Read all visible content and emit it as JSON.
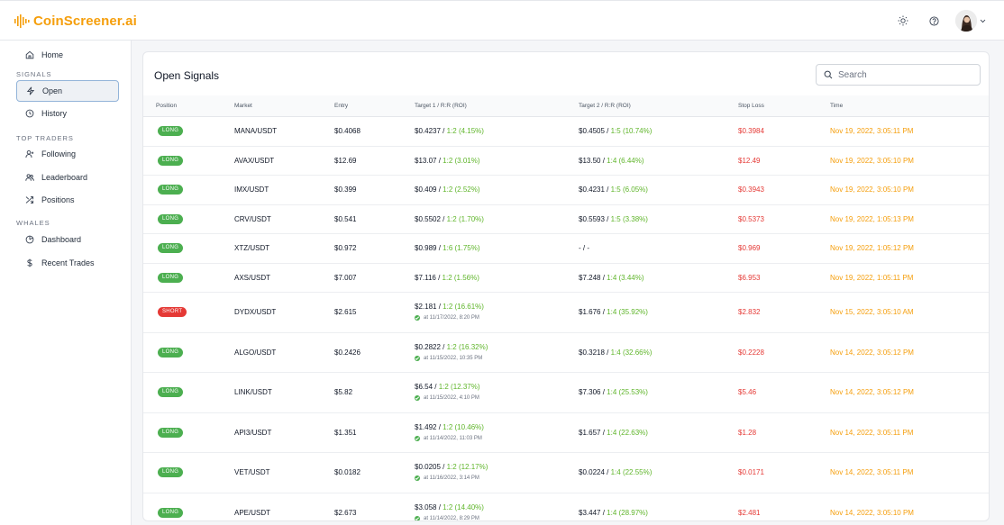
{
  "app": {
    "name": "CoinScreener.ai"
  },
  "colors": {
    "brand": "#f59e0b",
    "long": "#4caf50",
    "short": "#e53935",
    "roi": "#5fb52a",
    "stop": "#e53935",
    "time": "#f59e0b"
  },
  "sidebar": {
    "home": "Home",
    "sections": [
      "SIGNALS",
      "TOP TRADERS",
      "WHALES"
    ],
    "signals": [
      {
        "label": "Open",
        "icon": "lightning-icon",
        "active": true
      },
      {
        "label": "History",
        "icon": "clock-icon"
      }
    ],
    "traders": [
      {
        "label": "Following",
        "icon": "user-plus-icon"
      },
      {
        "label": "Leaderboard",
        "icon": "users-icon"
      },
      {
        "label": "Positions",
        "icon": "shuffle-icon"
      }
    ],
    "whales": [
      {
        "label": "Dashboard",
        "icon": "gauge-icon"
      },
      {
        "label": "Recent Trades",
        "icon": "dollar-icon"
      }
    ]
  },
  "main": {
    "title": "Open Signals",
    "search_placeholder": "Search",
    "columns": [
      "Position",
      "Market",
      "Entry",
      "Target 1 / R:R (ROI)",
      "Target 2 / R:R (ROI)",
      "Stop Loss",
      "Time"
    ],
    "rows": [
      {
        "position": "LONG",
        "market": "MANA/USDT",
        "entry": "$0.4068",
        "t1_price": "$0.4237",
        "t1_rr": "1:2 (4.15%)",
        "t1_hit": "",
        "t2_price": "$0.4505",
        "t2_rr": "1:5 (10.74%)",
        "stop": "$0.3984",
        "time": "Nov 19, 2022, 3:05:11 PM"
      },
      {
        "position": "LONG",
        "market": "AVAX/USDT",
        "entry": "$12.69",
        "t1_price": "$13.07",
        "t1_rr": "1:2 (3.01%)",
        "t1_hit": "",
        "t2_price": "$13.50",
        "t2_rr": "1:4 (6.44%)",
        "stop": "$12.49",
        "time": "Nov 19, 2022, 3:05:10 PM"
      },
      {
        "position": "LONG",
        "market": "IMX/USDT",
        "entry": "$0.399",
        "t1_price": "$0.409",
        "t1_rr": "1:2 (2.52%)",
        "t1_hit": "",
        "t2_price": "$0.4231",
        "t2_rr": "1:5 (6.05%)",
        "stop": "$0.3943",
        "time": "Nov 19, 2022, 3:05:10 PM"
      },
      {
        "position": "LONG",
        "market": "CRV/USDT",
        "entry": "$0.541",
        "t1_price": "$0.5502",
        "t1_rr": "1:2 (1.70%)",
        "t1_hit": "",
        "t2_price": "$0.5593",
        "t2_rr": "1:5 (3.38%)",
        "stop": "$0.5373",
        "time": "Nov 19, 2022, 1:05:13 PM"
      },
      {
        "position": "LONG",
        "market": "XTZ/USDT",
        "entry": "$0.972",
        "t1_price": "$0.989",
        "t1_rr": "1:6 (1.75%)",
        "t1_hit": "",
        "t2_price": "- / -",
        "t2_rr": "",
        "stop": "$0.969",
        "time": "Nov 19, 2022, 1:05:12 PM"
      },
      {
        "position": "LONG",
        "market": "AXS/USDT",
        "entry": "$7.007",
        "t1_price": "$7.116",
        "t1_rr": "1:2 (1.56%)",
        "t1_hit": "",
        "t2_price": "$7.248",
        "t2_rr": "1:4 (3.44%)",
        "stop": "$6.953",
        "time": "Nov 19, 2022, 1:05:11 PM"
      },
      {
        "position": "SHORT",
        "market": "DYDX/USDT",
        "entry": "$2.615",
        "t1_price": "$2.181",
        "t1_rr": "1:2 (16.61%)",
        "t1_hit": "at 11/17/2022, 8:20 PM",
        "t2_price": "$1.676",
        "t2_rr": "1:4 (35.92%)",
        "stop": "$2.832",
        "time": "Nov 15, 2022, 3:05:10 AM"
      },
      {
        "position": "LONG",
        "market": "ALGO/USDT",
        "entry": "$0.2426",
        "t1_price": "$0.2822",
        "t1_rr": "1:2 (16.32%)",
        "t1_hit": "at 11/15/2022, 10:35 PM",
        "t2_price": "$0.3218",
        "t2_rr": "1:4 (32.66%)",
        "stop": "$0.2228",
        "time": "Nov 14, 2022, 3:05:12 PM"
      },
      {
        "position": "LONG",
        "market": "LINK/USDT",
        "entry": "$5.82",
        "t1_price": "$6.54",
        "t1_rr": "1:2 (12.37%)",
        "t1_hit": "at 11/15/2022, 4:10 PM",
        "t2_price": "$7.306",
        "t2_rr": "1:4 (25.53%)",
        "stop": "$5.46",
        "time": "Nov 14, 2022, 3:05:12 PM"
      },
      {
        "position": "LONG",
        "market": "API3/USDT",
        "entry": "$1.351",
        "t1_price": "$1.492",
        "t1_rr": "1:2 (10.46%)",
        "t1_hit": "at 11/14/2022, 11:03 PM",
        "t2_price": "$1.657",
        "t2_rr": "1:4 (22.63%)",
        "stop": "$1.28",
        "time": "Nov 14, 2022, 3:05:11 PM"
      },
      {
        "position": "LONG",
        "market": "VET/USDT",
        "entry": "$0.0182",
        "t1_price": "$0.0205",
        "t1_rr": "1:2 (12.17%)",
        "t1_hit": "at 11/16/2022, 3:14 PM",
        "t2_price": "$0.0224",
        "t2_rr": "1:4 (22.55%)",
        "stop": "$0.0171",
        "time": "Nov 14, 2022, 3:05:11 PM"
      },
      {
        "position": "LONG",
        "market": "APE/USDT",
        "entry": "$2.673",
        "t1_price": "$3.058",
        "t1_rr": "1:2 (14.40%)",
        "t1_hit": "at 11/14/2022, 8:29 PM",
        "t2_price": "$3.447",
        "t2_rr": "1:4 (28.97%)",
        "stop": "$2.481",
        "time": "Nov 14, 2022, 3:05:10 PM"
      }
    ]
  }
}
